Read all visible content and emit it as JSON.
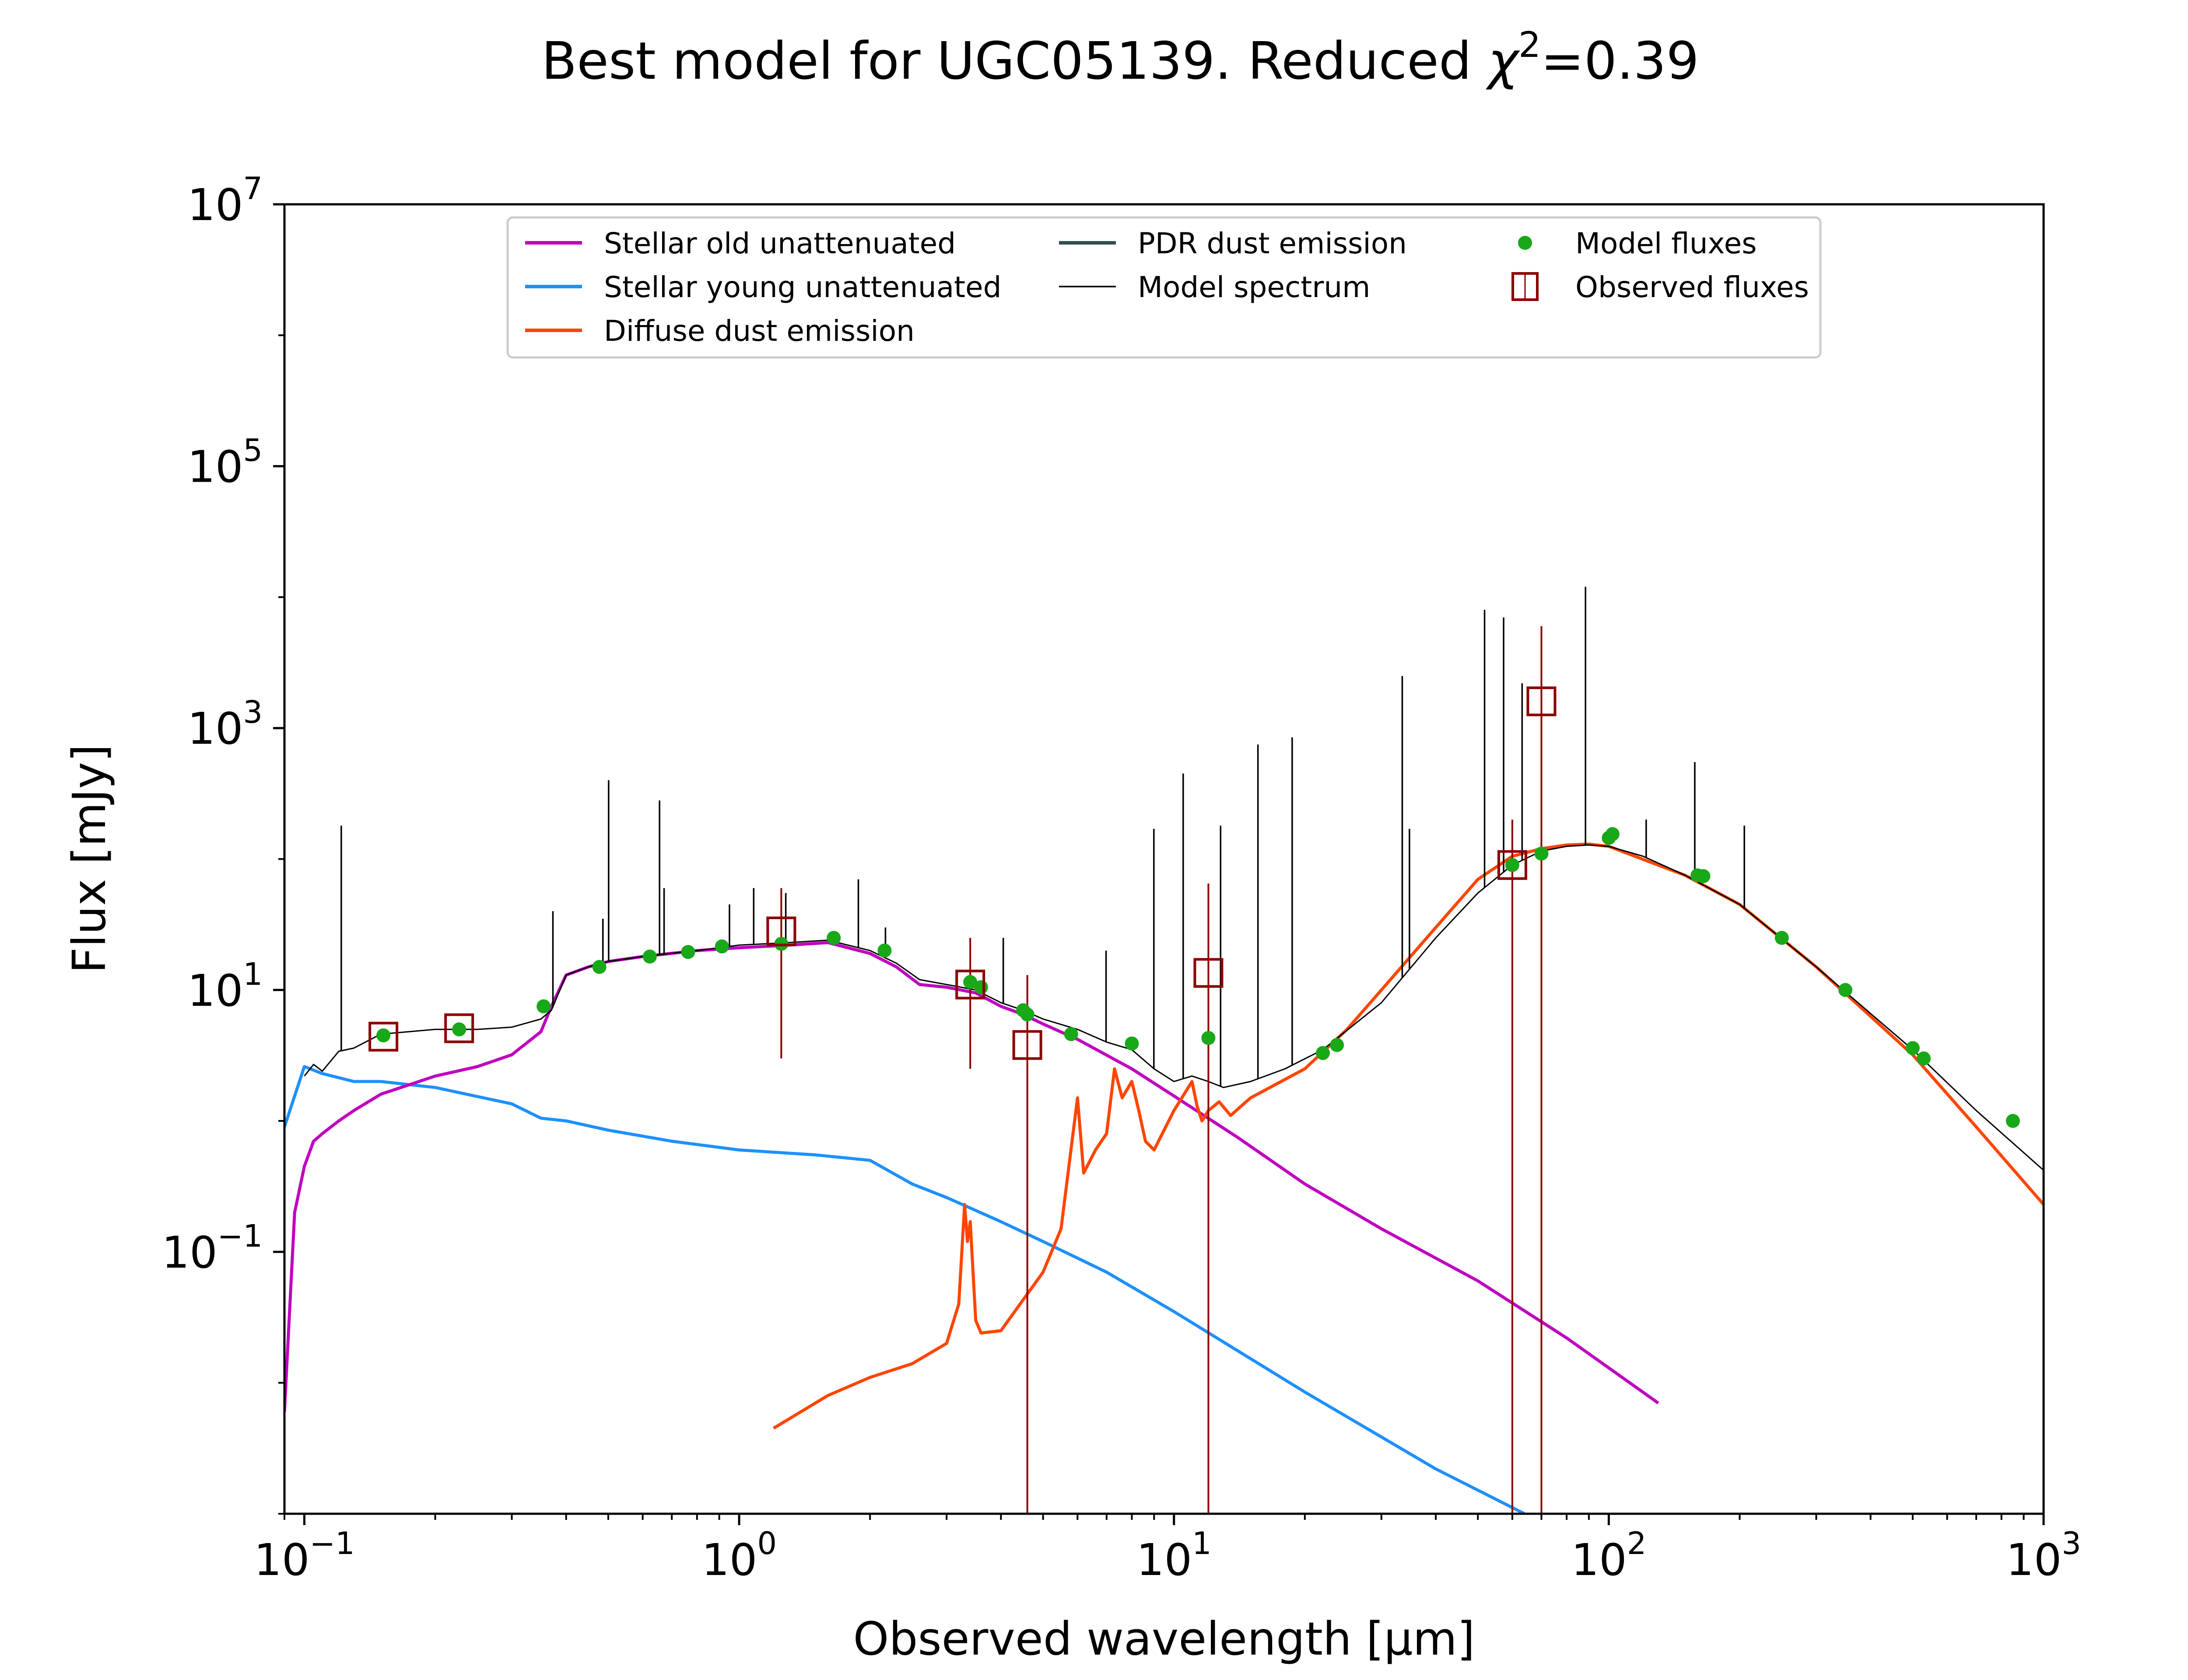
{
  "chart_data": {
    "type": "line",
    "title_main": "Best model for UGC05139. Reduced ",
    "title_chi": "χ",
    "title_sup": "2",
    "title_value": "=0.39",
    "xlabel": "Observed wavelength [μm]",
    "ylabel": "Flux [mJy]",
    "xscale": "log",
    "yscale": "log",
    "xlim": [
      0.09,
      1000
    ],
    "ylim": [
      0.001,
      10000000
    ],
    "xticks": [
      {
        "value": 0.1,
        "base": "10",
        "exp": "−1"
      },
      {
        "value": 1,
        "base": "10",
        "exp": "0"
      },
      {
        "value": 10,
        "base": "10",
        "exp": "1"
      },
      {
        "value": 100,
        "base": "10",
        "exp": "2"
      },
      {
        "value": 1000,
        "base": "10",
        "exp": "3"
      }
    ],
    "yticks": [
      {
        "value": 0.1,
        "base": "10",
        "exp": "−1"
      },
      {
        "value": 10,
        "base": "10",
        "exp": "1"
      },
      {
        "value": 1000,
        "base": "10",
        "exp": "3"
      },
      {
        "value": 100000,
        "base": "10",
        "exp": "5"
      },
      {
        "value": 10000000,
        "base": "10",
        "exp": "7"
      }
    ],
    "grid": false,
    "legend_placement": "top-center",
    "legend": [
      {
        "label": "Stellar old unattenuated",
        "color": "#bf00bf",
        "kind": "line"
      },
      {
        "label": "Stellar young unattenuated",
        "color": "#1e90ff",
        "kind": "line"
      },
      {
        "label": "Diffuse dust emission",
        "color": "#ff4500",
        "kind": "line"
      },
      {
        "label": "PDR dust emission",
        "color": "#2f4f4f",
        "kind": "line"
      },
      {
        "label": "Model spectrum",
        "color": "#000000",
        "kind": "thinline"
      },
      {
        "label": "Model fluxes",
        "color": "#18a818",
        "kind": "dot"
      },
      {
        "label": "Observed fluxes",
        "color": "#8b0000",
        "kind": "square"
      }
    ],
    "series": [
      {
        "name": "Model spectrum",
        "color": "#000000",
        "x": [
          0.1,
          0.105,
          0.11,
          0.12,
          0.13,
          0.15,
          0.2,
          0.25,
          0.3,
          0.35,
          0.37,
          0.4,
          0.45,
          0.5,
          0.6,
          0.8,
          1.0,
          1.3,
          1.6,
          2.0,
          2.3,
          2.6,
          3.0,
          3.5,
          4.0,
          4.5,
          5.0,
          6.0,
          7.0,
          8.0,
          9.0,
          10.0,
          11.0,
          12.0,
          13.0,
          15.0,
          18.0,
          22.0,
          30.0,
          40.0,
          50.0,
          60.0,
          70.0,
          80.0,
          90.0,
          100.0,
          120.0,
          150.0,
          200.0,
          300.0,
          500.0,
          700.0,
          1000.0
        ],
        "y": [
          2.2,
          2.7,
          2.4,
          3.4,
          3.6,
          4.6,
          5.0,
          5.0,
          5.2,
          6.0,
          7.0,
          13.0,
          15.0,
          16.5,
          18.0,
          20.0,
          22.0,
          23.0,
          24.0,
          20.0,
          16.0,
          12.0,
          11.0,
          10.0,
          8.0,
          7.0,
          6.0,
          5.0,
          4.0,
          3.5,
          2.5,
          2.0,
          2.2,
          2.0,
          1.8,
          2.0,
          2.5,
          3.5,
          8.0,
          25.0,
          55.0,
          90.0,
          115.0,
          125.0,
          128.0,
          125.0,
          105.0,
          75.0,
          45.0,
          15.0,
          3.5,
          1.2,
          0.42
        ]
      },
      {
        "name": "Stellar old unattenuated",
        "color": "#bf00bf",
        "x": [
          0.09,
          0.095,
          0.1,
          0.105,
          0.11,
          0.12,
          0.13,
          0.15,
          0.2,
          0.25,
          0.3,
          0.35,
          0.37,
          0.4,
          0.45,
          0.5,
          0.6,
          0.8,
          1.0,
          1.3,
          1.6,
          2.0,
          2.3,
          2.6,
          3.0,
          3.5,
          4.0,
          4.5,
          5.0,
          6.0,
          8.0,
          10.0,
          14.0,
          20.0,
          30.0,
          50.0,
          80.0,
          130.0
        ],
        "y": [
          0.006,
          0.2,
          0.45,
          0.7,
          0.8,
          1.0,
          1.2,
          1.6,
          2.2,
          2.6,
          3.2,
          4.8,
          7.5,
          13.0,
          15.0,
          16.5,
          18.0,
          20.0,
          21.0,
          22.0,
          23.0,
          19.0,
          15.0,
          11.0,
          10.5,
          9.5,
          7.5,
          6.5,
          5.5,
          4.2,
          2.5,
          1.55,
          0.75,
          0.33,
          0.15,
          0.06,
          0.022,
          0.007
        ]
      },
      {
        "name": "Stellar young unattenuated",
        "color": "#1e90ff",
        "x": [
          0.09,
          0.1,
          0.11,
          0.13,
          0.15,
          0.2,
          0.3,
          0.35,
          0.4,
          0.5,
          0.7,
          1.0,
          1.5,
          2.0,
          2.5,
          3.0,
          4.0,
          5.0,
          7.0,
          10.0,
          20.0,
          40.0,
          64.0
        ],
        "y": [
          0.9,
          2.6,
          2.3,
          2.0,
          2.0,
          1.8,
          1.35,
          1.05,
          1.0,
          0.85,
          0.7,
          0.6,
          0.55,
          0.5,
          0.33,
          0.26,
          0.17,
          0.12,
          0.07,
          0.035,
          0.0085,
          0.0022,
          0.001
        ]
      },
      {
        "name": "Diffuse dust emission",
        "color": "#ff4500",
        "x": [
          1.2,
          1.6,
          2.0,
          2.5,
          3.0,
          3.2,
          3.3,
          3.35,
          3.4,
          3.5,
          3.6,
          4.0,
          5.0,
          5.5,
          6.0,
          6.2,
          6.6,
          7.0,
          7.3,
          7.6,
          8.0,
          8.3,
          8.6,
          9.0,
          10.0,
          11.0,
          11.3,
          11.6,
          12.0,
          12.7,
          13.5,
          15.0,
          20.0,
          25.0,
          30.0,
          40.0,
          50.0,
          60.0,
          70.0,
          80.0,
          90.0,
          100.0,
          150.0,
          200.0,
          300.0,
          500.0,
          700.0,
          1000.0
        ],
        "y": [
          0.0045,
          0.008,
          0.011,
          0.014,
          0.02,
          0.04,
          0.23,
          0.12,
          0.17,
          0.03,
          0.024,
          0.025,
          0.07,
          0.15,
          1.5,
          0.4,
          0.6,
          0.8,
          2.5,
          1.5,
          2.0,
          1.2,
          0.7,
          0.6,
          1.2,
          2.0,
          1.3,
          1.0,
          1.2,
          1.4,
          1.1,
          1.5,
          2.5,
          5.0,
          10.0,
          30.0,
          70.0,
          105.0,
          120.0,
          128.0,
          130.0,
          125.0,
          75.0,
          45.0,
          15.0,
          3.2,
          0.9,
          0.23
        ]
      }
    ],
    "emission_lines": [
      {
        "x": 0.1216,
        "y": 180
      },
      {
        "x": 0.373,
        "y": 40
      },
      {
        "x": 0.486,
        "y": 35
      },
      {
        "x": 0.501,
        "y": 400
      },
      {
        "x": 0.656,
        "y": 280
      },
      {
        "x": 0.672,
        "y": 60
      },
      {
        "x": 0.95,
        "y": 45
      },
      {
        "x": 1.08,
        "y": 60
      },
      {
        "x": 1.28,
        "y": 55
      },
      {
        "x": 1.88,
        "y": 70
      },
      {
        "x": 2.17,
        "y": 30
      },
      {
        "x": 4.05,
        "y": 25
      },
      {
        "x": 6.98,
        "y": 20
      },
      {
        "x": 8.99,
        "y": 170
      },
      {
        "x": 10.5,
        "y": 450
      },
      {
        "x": 12.8,
        "y": 180
      },
      {
        "x": 15.6,
        "y": 750
      },
      {
        "x": 18.7,
        "y": 850
      },
      {
        "x": 33.5,
        "y": 2500
      },
      {
        "x": 34.8,
        "y": 170
      },
      {
        "x": 51.8,
        "y": 8000
      },
      {
        "x": 57.3,
        "y": 7000
      },
      {
        "x": 63.2,
        "y": 2200
      },
      {
        "x": 88.4,
        "y": 12000
      },
      {
        "x": 121.9,
        "y": 200
      },
      {
        "x": 157.7,
        "y": 550
      },
      {
        "x": 205.0,
        "y": 180
      }
    ],
    "model_fluxes": {
      "name": "Model fluxes",
      "color": "#18a818",
      "x": [
        0.152,
        0.227,
        0.355,
        0.477,
        0.623,
        0.763,
        0.913,
        1.25,
        1.65,
        2.16,
        3.4,
        3.6,
        4.5,
        4.6,
        5.8,
        8.0,
        12.0,
        22.0,
        23.7,
        60.0,
        70.0,
        100.0,
        102.0,
        160.0,
        165.0,
        250.0,
        350.0,
        500.0,
        530.0,
        850.0
      ],
      "y": [
        4.5,
        5.0,
        7.5,
        15.0,
        18.0,
        19.5,
        21.5,
        22.5,
        25.0,
        20.0,
        11.5,
        10.5,
        7.0,
        6.5,
        4.6,
        3.9,
        4.3,
        3.3,
        3.8,
        90.0,
        110.0,
        145.0,
        155.0,
        75.0,
        74.0,
        25.0,
        10.0,
        3.6,
        3.0,
        1.0
      ]
    },
    "observed_fluxes": {
      "name": "Observed fluxes",
      "color": "#8b0000",
      "points": [
        {
          "x": 0.152,
          "y": 4.4
        },
        {
          "x": 0.227,
          "y": 5.1
        },
        {
          "x": 1.25,
          "y": 28.0,
          "lo": 3.0,
          "hi": 60.0
        },
        {
          "x": 3.4,
          "y": 11.0,
          "lo": 2.5,
          "hi": 25.0
        },
        {
          "x": 4.6,
          "y": 3.8,
          "lo": 0.001,
          "hi": 13.0
        },
        {
          "x": 12.0,
          "y": 13.5,
          "lo": 0.001,
          "hi": 65.0
        },
        {
          "x": 60.0,
          "y": 90.0,
          "lo": 0.001,
          "hi": 200.0
        },
        {
          "x": 70.0,
          "y": 1600.0,
          "lo": 0.001,
          "hi": 6000.0
        }
      ]
    }
  }
}
